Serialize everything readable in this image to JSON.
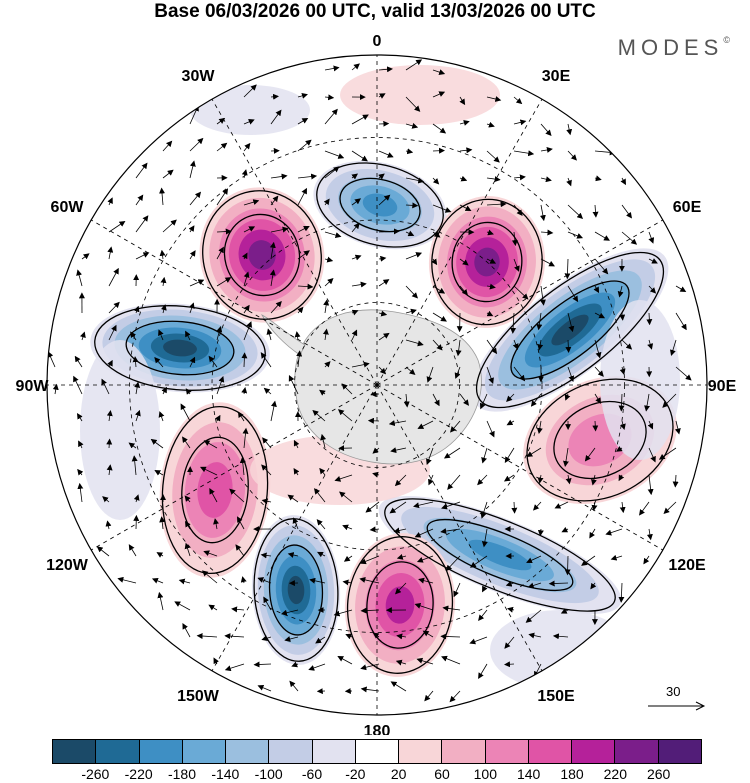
{
  "title": "Base 06/03/2026 00 UTC, valid 13/03/2026 00 UTC",
  "brand": "MODES",
  "brand_mark": "©",
  "map": {
    "projection": "south polar stereographic",
    "longitude_labels": {
      "lon_0": "0",
      "lon_30e": "30E",
      "lon_60e": "60E",
      "lon_90e": "90E",
      "lon_120e": "120E",
      "lon_150e": "150E",
      "lon_180": "180",
      "lon_150w": "150W",
      "lon_120w": "120W",
      "lon_90w": "90W",
      "lon_60w": "60W",
      "lon_30w": "30W"
    },
    "anomaly_centers": [
      {
        "name": "30W-60W high",
        "lon": "45W",
        "sign": "positive",
        "peak": 260
      },
      {
        "name": "0-10E low",
        "lon": "5E",
        "sign": "negative",
        "peak": -200
      },
      {
        "name": "30E-45E high",
        "lon": "40E",
        "sign": "positive",
        "peak": 260
      },
      {
        "name": "60E-75E low",
        "lon": "70E",
        "sign": "negative",
        "peak": -260
      },
      {
        "name": "75W-90W low",
        "lon": "80W",
        "sign": "negative",
        "peak": -260
      },
      {
        "name": "100E high",
        "lon": "100E",
        "sign": "positive",
        "peak": 140
      },
      {
        "name": "120W-105W high",
        "lon": "110W",
        "sign": "positive",
        "peak": 180
      },
      {
        "name": "135E low",
        "lon": "135E",
        "sign": "negative",
        "peak": -180
      },
      {
        "name": "150W low",
        "lon": "150W",
        "sign": "negative",
        "peak": -260
      },
      {
        "name": "170E high",
        "lon": "170E",
        "sign": "positive",
        "peak": 220
      }
    ]
  },
  "vector_scale": {
    "label": "30",
    "value": 30
  },
  "colorbar": {
    "labels": [
      "-260",
      "-220",
      "-180",
      "-140",
      "-100",
      "-60",
      "-20",
      "20",
      "60",
      "100",
      "140",
      "180",
      "220",
      "260"
    ],
    "colors": [
      "#1b4a68",
      "#1f6a95",
      "#3e8fc4",
      "#6aaad6",
      "#9bbfdf",
      "#c3cde6",
      "#e2e2f0",
      "#ffffff",
      "#f8d6d8",
      "#f2afc3",
      "#ec84b6",
      "#e054a6",
      "#b5219a",
      "#7b1e8a",
      "#521d78"
    ]
  }
}
